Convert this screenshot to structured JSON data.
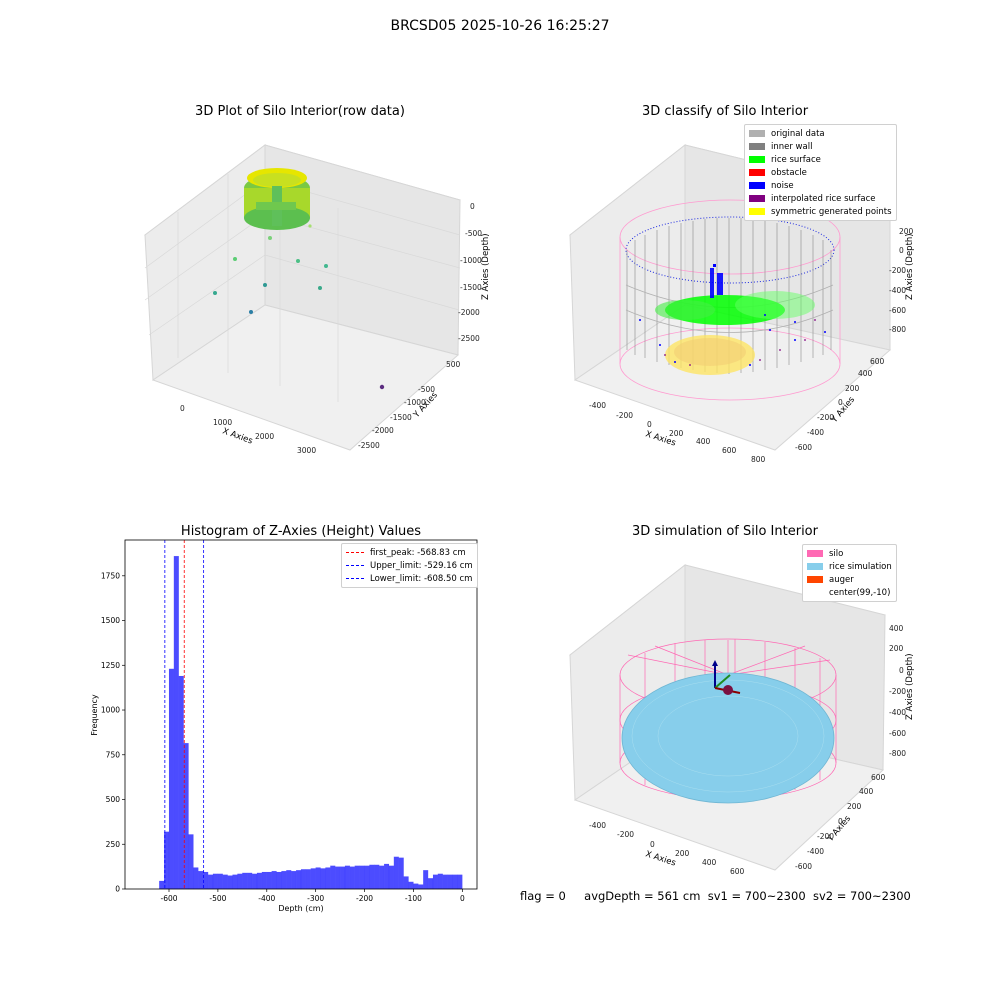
{
  "figure": {
    "suptitle": "BRCSD05 2025-10-26 16:25:27"
  },
  "panels": {
    "raw": {
      "title": "3D Plot of Silo Interior(row data)",
      "xlabel": "X Axies",
      "ylabel": "Y Axies",
      "zlabel": "Z Axies (Depth)",
      "xticks": [
        "0",
        "1000",
        "2000",
        "3000"
      ],
      "yticks": [
        "500",
        "-500",
        "-1000",
        "-1500",
        "-2000",
        "-2500"
      ],
      "zticks": [
        "0",
        "-500",
        "-1000",
        "-1500",
        "-2000",
        "-2500"
      ]
    },
    "classify": {
      "title": "3D classify of Silo Interior",
      "xlabel": "X Axies",
      "ylabel": "Y Axies",
      "zlabel": "Z Axies (Depth)",
      "xticks": [
        "-400",
        "-200",
        "0",
        "200",
        "400",
        "600",
        "800"
      ],
      "yticks": [
        "600",
        "400",
        "200",
        "0",
        "-200",
        "-400",
        "-600"
      ],
      "zticks": [
        "200",
        "0",
        "-200",
        "-400",
        "-600",
        "-800"
      ],
      "legend": [
        {
          "label": "original data",
          "color": "#b0b0b0"
        },
        {
          "label": "inner wall",
          "color": "#808080"
        },
        {
          "label": "rice surface",
          "color": "#00ff00"
        },
        {
          "label": "obstacle",
          "color": "#ff0000"
        },
        {
          "label": "noise",
          "color": "#0000ff"
        },
        {
          "label": "interpolated rice surface",
          "color": "#800080"
        },
        {
          "label": "symmetric generated points",
          "color": "#ffff00"
        }
      ]
    },
    "histogram": {
      "title": "Histogram of Z-Axies (Height) Values",
      "xlabel": "Depth (cm)",
      "ylabel": "Frequency",
      "legend": [
        {
          "label": "first_peak: -568.83 cm",
          "color": "#ff0000"
        },
        {
          "label": "Upper_limit: -529.16 cm",
          "color": "#0000ff"
        },
        {
          "label": "Lower_limit: -608.50 cm",
          "color": "#0000ff"
        }
      ]
    },
    "simulation": {
      "title": "3D simulation of Silo Interior",
      "xlabel": "X Axies",
      "ylabel": "Y Axies",
      "zlabel": "Z Axies (Depth)",
      "xticks": [
        "-400",
        "-200",
        "0",
        "200",
        "400",
        "600"
      ],
      "yticks": [
        "600",
        "400",
        "200",
        "0",
        "-200",
        "-400",
        "-600"
      ],
      "zticks": [
        "400",
        "200",
        "0",
        "-200",
        "-400",
        "-600",
        "-800"
      ],
      "legend": [
        {
          "label": "silo",
          "color": "#ff69b4"
        },
        {
          "label": "rice simulation",
          "color": "#87ceeb"
        },
        {
          "label": "auger",
          "color": "#ff4500"
        },
        {
          "label": "center(99,-10)",
          "color": ""
        }
      ]
    }
  },
  "status": {
    "flag": "flag = 0",
    "avg_depth": "avgDepth = 561 cm",
    "sv1": "sv1 = 700~2300",
    "sv2": "sv2 = 700~2300"
  },
  "chart_data": [
    {
      "type": "scatter",
      "title": "3D Plot of Silo Interior(row data)",
      "projection": "3d",
      "xlabel": "X Axies",
      "ylabel": "Y Axies",
      "zlabel": "Z Axies (Depth)",
      "xlim": [
        -500,
        3500
      ],
      "ylim": [
        -2700,
        700
      ],
      "zlim": [
        -2600,
        100
      ]
    },
    {
      "type": "scatter",
      "title": "3D classify of Silo Interior",
      "projection": "3d",
      "xlabel": "X Axies",
      "ylabel": "Y Axies",
      "zlabel": "Z Axies (Depth)",
      "xlim": [
        -500,
        800
      ],
      "ylim": [
        -700,
        700
      ],
      "zlim": [
        -900,
        300
      ],
      "series": [
        "original data",
        "inner wall",
        "rice surface",
        "obstacle",
        "noise",
        "interpolated rice surface",
        "symmetric generated points"
      ]
    },
    {
      "type": "bar",
      "title": "Histogram of Z-Axies (Height) Values",
      "xlabel": "Depth (cm)",
      "ylabel": "Frequency",
      "xlim": [
        -690,
        30
      ],
      "ylim": [
        0,
        1950
      ],
      "xticks": [
        -600,
        -500,
        -400,
        -300,
        -200,
        -100,
        0
      ],
      "yticks": [
        0,
        250,
        500,
        750,
        1000,
        1250,
        1500,
        1750
      ],
      "bin_width": 10,
      "bin_starts": [
        -620,
        -610,
        -600,
        -590,
        -580,
        -570,
        -560,
        -550,
        -540,
        -530,
        -520,
        -510,
        -500,
        -490,
        -480,
        -470,
        -460,
        -450,
        -440,
        -430,
        -420,
        -410,
        -400,
        -390,
        -380,
        -370,
        -360,
        -350,
        -340,
        -330,
        -320,
        -310,
        -300,
        -290,
        -280,
        -270,
        -260,
        -250,
        -240,
        -230,
        -220,
        -210,
        -200,
        -190,
        -180,
        -170,
        -160,
        -150,
        -140,
        -130,
        -120,
        -110,
        -100,
        -90,
        -80,
        -70,
        -60,
        -50,
        -40,
        -30,
        -20,
        -10
      ],
      "counts": [
        45,
        320,
        1230,
        1860,
        1190,
        815,
        305,
        120,
        100,
        95,
        80,
        85,
        85,
        80,
        75,
        80,
        85,
        90,
        90,
        85,
        90,
        95,
        95,
        100,
        95,
        100,
        105,
        100,
        105,
        110,
        110,
        115,
        120,
        115,
        120,
        130,
        125,
        125,
        130,
        125,
        130,
        130,
        130,
        135,
        135,
        130,
        140,
        130,
        180,
        175,
        70,
        40,
        30,
        25,
        105,
        60,
        80,
        85,
        80,
        80,
        80,
        80
      ],
      "vlines": [
        {
          "label": "first_peak: -568.83 cm",
          "x": -568.83,
          "color": "#ff0000"
        },
        {
          "label": "Upper_limit: -529.16 cm",
          "x": -529.16,
          "color": "#0000ff"
        },
        {
          "label": "Lower_limit: -608.50 cm",
          "x": -608.5,
          "color": "#0000ff"
        }
      ]
    },
    {
      "type": "area",
      "title": "3D simulation of Silo Interior",
      "projection": "3d",
      "xlabel": "X Axies",
      "ylabel": "Y Axies",
      "zlabel": "Z Axies (Depth)",
      "xlim": [
        -500,
        700
      ],
      "ylim": [
        -700,
        700
      ],
      "zlim": [
        -900,
        450
      ],
      "series": [
        "silo",
        "rice simulation",
        "auger",
        "center(99,-10)"
      ]
    }
  ]
}
